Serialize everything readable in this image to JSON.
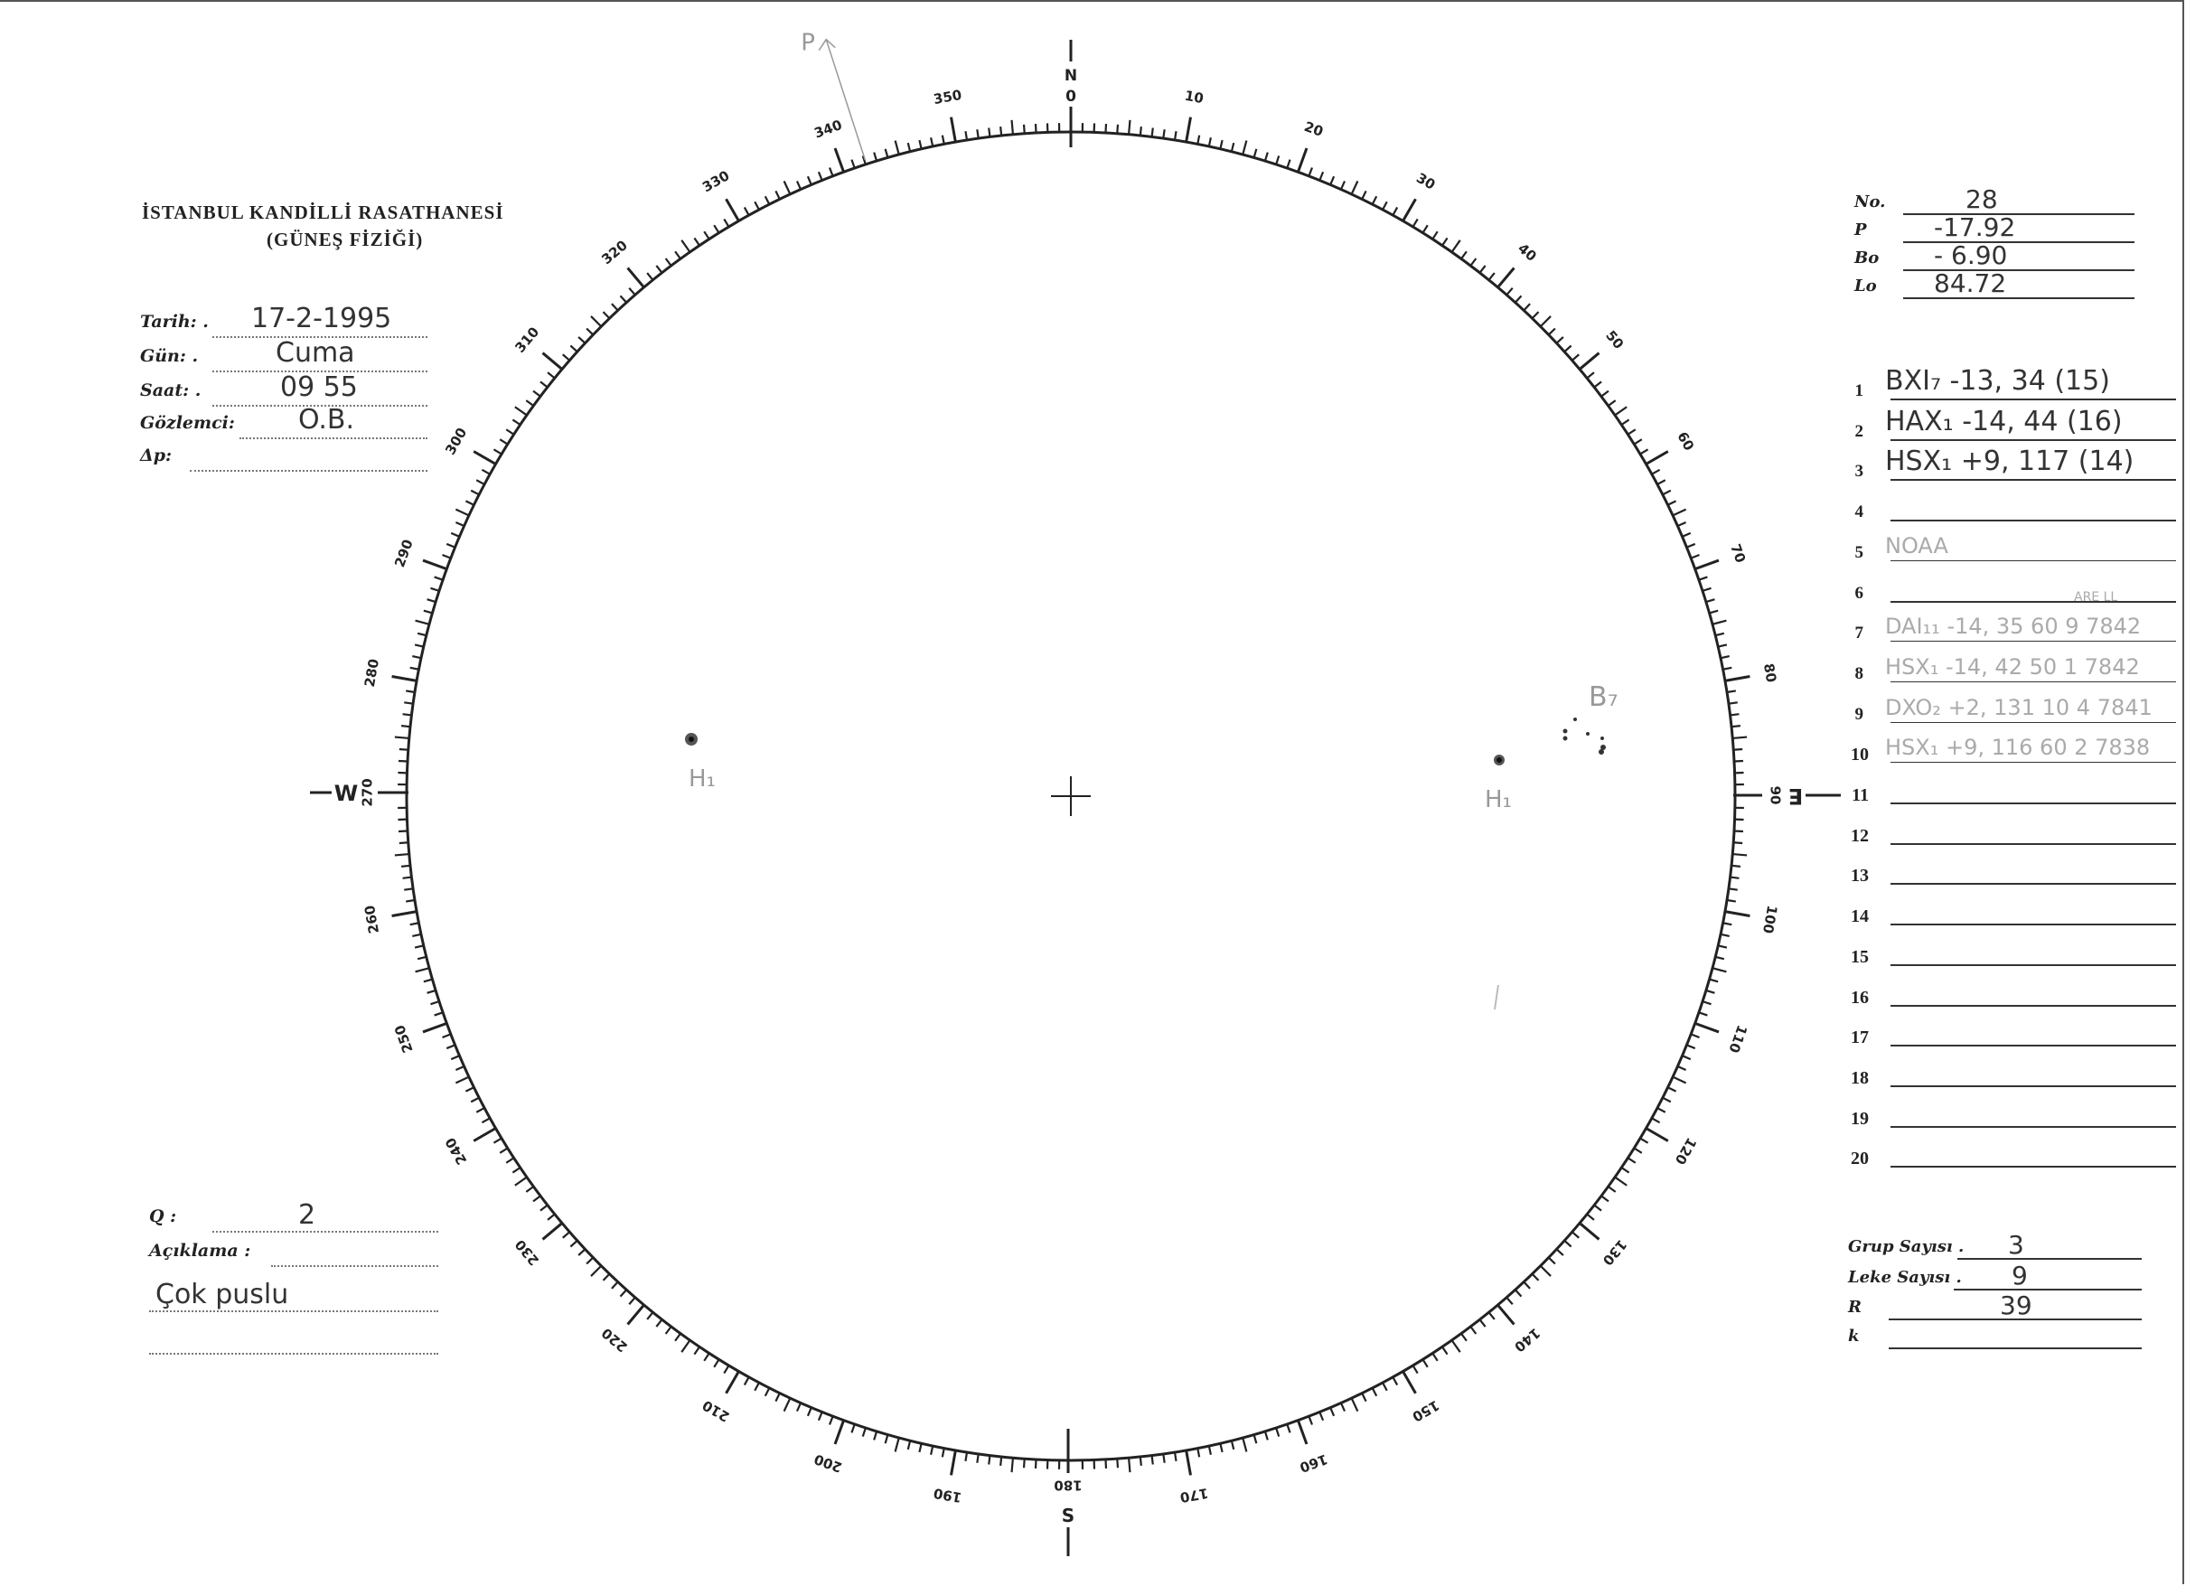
{
  "header": {
    "title": "İSTANBUL KANDİLLİ RASATHANESİ",
    "subtitle": "(GÜNEŞ FİZİĞİ)"
  },
  "fields": [
    {
      "label": "Tarih: .",
      "value": "17-2-1995"
    },
    {
      "label": "Gün: .",
      "value": "Cuma"
    },
    {
      "label": "Saat: .",
      "value": "09 55"
    },
    {
      "label": "Gözlemci:",
      "value": "O.B."
    },
    {
      "label": "Δp:",
      "value": ""
    }
  ],
  "quality": {
    "label": "Q :",
    "value": "2"
  },
  "remarks": {
    "label": "Açıklama :",
    "value": "Çok puslu"
  },
  "params": [
    {
      "label": "No.",
      "value": "28"
    },
    {
      "label": "P",
      "value": "-17.92"
    },
    {
      "label": "Bo",
      "value": "- 6.90"
    },
    {
      "label": "Lo",
      "value": "84.72"
    }
  ],
  "groups": {
    "rows": [
      {
        "n": "1",
        "text": "BXI₇ -13, 34 (15)",
        "style": "ink"
      },
      {
        "n": "2",
        "text": "HAX₁ -14, 44 (16)",
        "style": "ink"
      },
      {
        "n": "3",
        "text": "HSX₁ +9, 117 (14)",
        "style": "ink"
      },
      {
        "n": "4",
        "text": "",
        "style": "ink"
      },
      {
        "n": "5",
        "text": "NOAA",
        "style": "faint"
      },
      {
        "n": "6",
        "text": "",
        "style": "ink"
      },
      {
        "n": "7",
        "text": "DAI₁₁  -14, 35   60   9   7842",
        "style": "faint"
      },
      {
        "n": "8",
        "text": "HSX₁  -14, 42   50   1   7842",
        "style": "faint"
      },
      {
        "n": "9",
        "text": "DXO₂  +2, 131   10   4   7841",
        "style": "faint"
      },
      {
        "n": "10",
        "text": "HSX₁  +9, 116   60   2   7838",
        "style": "faint"
      },
      {
        "n": "11",
        "text": "",
        "style": "ink"
      },
      {
        "n": "12",
        "text": "",
        "style": "ink"
      },
      {
        "n": "13",
        "text": "",
        "style": "ink"
      },
      {
        "n": "14",
        "text": "",
        "style": "ink"
      },
      {
        "n": "15",
        "text": "",
        "style": "ink"
      },
      {
        "n": "16",
        "text": "",
        "style": "ink"
      },
      {
        "n": "17",
        "text": "",
        "style": "ink"
      },
      {
        "n": "18",
        "text": "",
        "style": "ink"
      },
      {
        "n": "19",
        "text": "",
        "style": "ink"
      },
      {
        "n": "20",
        "text": "",
        "style": "ink"
      }
    ],
    "column_note": "ARE   LL"
  },
  "counts": [
    {
      "label": "Grup Sayısı .",
      "value": "3"
    },
    {
      "label": "Leke Sayısı .",
      "value": "9"
    },
    {
      "label": "R",
      "value": "39"
    },
    {
      "label": "k",
      "value": ""
    }
  ],
  "dial": {
    "labels": [
      "0",
      "10",
      "20",
      "30",
      "40",
      "50",
      "60",
      "70",
      "80",
      "90",
      "100",
      "110",
      "120",
      "130",
      "140",
      "150",
      "160",
      "170",
      "180",
      "190",
      "200",
      "210",
      "220",
      "230",
      "240",
      "250",
      "260",
      "270",
      "280",
      "290",
      "300",
      "310",
      "320",
      "330",
      "340",
      "350"
    ],
    "north": "N",
    "south": "S",
    "east": "E",
    "west": "W",
    "pole_label": "P",
    "pole_angle_deg": -17.92
  },
  "spots": [
    {
      "label": "H₁",
      "note": "group 2"
    },
    {
      "label": "H₁",
      "note": "group 3"
    },
    {
      "label": "B₇",
      "note": "group 1"
    }
  ],
  "colors": {
    "ink": "#222222",
    "pencil": "#999999"
  }
}
